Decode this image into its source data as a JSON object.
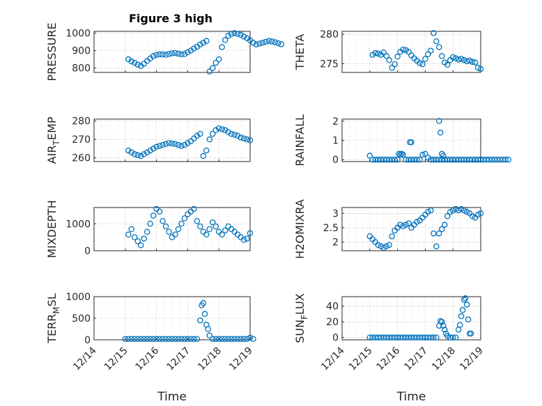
{
  "title": "Figure 3 high",
  "colors": {
    "marker": "#0072BD",
    "axis": "#262626",
    "grid": "#a0a0a0"
  },
  "x_ticks": [
    "12/14",
    "12/15",
    "12/16",
    "12/17",
    "12/18",
    "12/19"
  ],
  "x_label": "Time",
  "chart_data": [
    {
      "type": "scatter",
      "ylabel": "PRESSURE",
      "ylim": [
        775,
        1010
      ],
      "yticks": [
        800,
        900,
        1000
      ],
      "ylabel_sub": null,
      "grid": true,
      "marker": "circle",
      "x": [
        15.1,
        15.2,
        15.3,
        15.4,
        15.5,
        15.6,
        15.7,
        15.8,
        15.9,
        16.0,
        16.1,
        16.2,
        16.3,
        16.4,
        16.5,
        16.6,
        16.7,
        16.8,
        16.9,
        17.0,
        17.1,
        17.2,
        17.3,
        17.4,
        17.5,
        17.6,
        17.7,
        17.8,
        17.9,
        18.0,
        18.1,
        18.2,
        18.3,
        18.4,
        18.5,
        18.6,
        18.7,
        18.8,
        18.9,
        19.0,
        19.1,
        19.2,
        19.3,
        19.4,
        19.5,
        19.6,
        19.7,
        19.8,
        19.9,
        20.0
      ],
      "values": [
        850,
        838,
        830,
        820,
        812,
        825,
        840,
        855,
        868,
        875,
        878,
        878,
        876,
        880,
        884,
        886,
        882,
        878,
        880,
        890,
        900,
        912,
        922,
        935,
        945,
        955,
        780,
        800,
        830,
        850,
        920,
        960,
        985,
        995,
        1000,
        995,
        990,
        980,
        970,
        958,
        945,
        935,
        940,
        945,
        950,
        955,
        952,
        948,
        942,
        936
      ]
    },
    {
      "type": "scatter",
      "ylabel": "THETA",
      "ylim": [
        273.5,
        280.5
      ],
      "yticks": [
        275,
        280
      ],
      "ylabel_sub": null,
      "grid": true,
      "marker": "circle",
      "x": [
        15.1,
        15.2,
        15.3,
        15.4,
        15.5,
        15.6,
        15.7,
        15.8,
        15.9,
        16.0,
        16.1,
        16.2,
        16.3,
        16.4,
        16.5,
        16.6,
        16.7,
        16.8,
        16.9,
        17.0,
        17.1,
        17.2,
        17.3,
        17.4,
        17.5,
        17.6,
        17.7,
        17.8,
        17.9,
        18.0,
        18.1,
        18.2,
        18.3,
        18.4,
        18.5,
        18.6,
        18.7,
        18.8,
        18.9,
        19.0
      ],
      "values": [
        276.5,
        276.8,
        276.7,
        276.5,
        276.9,
        276.3,
        275.6,
        274.3,
        274.9,
        276.2,
        277.0,
        277.4,
        277.3,
        277.0,
        276.4,
        275.9,
        275.5,
        275.1,
        274.9,
        275.8,
        276.6,
        277.2,
        280.2,
        278.8,
        277.8,
        276.3,
        275.2,
        274.8,
        275.6,
        276.1,
        275.9,
        275.7,
        275.8,
        275.6,
        275.4,
        275.5,
        275.3,
        275.2,
        274.3,
        274.1
      ]
    },
    {
      "type": "scatter",
      "ylabel": "AIR",
      "ylabel_sub": "T",
      "ylabel_rest": "EMP",
      "ylim": [
        258,
        281
      ],
      "yticks": [
        260,
        270,
        280
      ],
      "grid": true,
      "marker": "circle",
      "x": [
        15.1,
        15.2,
        15.3,
        15.4,
        15.5,
        15.6,
        15.7,
        15.8,
        15.9,
        16.0,
        16.1,
        16.2,
        16.3,
        16.4,
        16.5,
        16.6,
        16.7,
        16.8,
        16.9,
        17.0,
        17.1,
        17.2,
        17.3,
        17.4,
        17.5,
        17.6,
        17.7,
        17.8,
        17.9,
        18.0,
        18.1,
        18.2,
        18.3,
        18.4,
        18.5,
        18.6,
        18.7,
        18.8,
        18.9,
        19.0
      ],
      "values": [
        264,
        263,
        262,
        261.5,
        261,
        262,
        263,
        264,
        265,
        266,
        266.5,
        267,
        267.5,
        268,
        267.8,
        267.5,
        267,
        266.5,
        267,
        268,
        269,
        270.5,
        272,
        273,
        261,
        264,
        270,
        273,
        275,
        276,
        275.5,
        275,
        274,
        273,
        272.5,
        272,
        271,
        270.5,
        270,
        269.5
      ]
    },
    {
      "type": "scatter",
      "ylabel": "RAINFALL",
      "ylim": [
        -0.1,
        2.1
      ],
      "yticks": [
        0,
        1,
        2
      ],
      "ylabel_sub": null,
      "grid": true,
      "marker": "circle",
      "x": [
        15.0,
        15.1,
        15.2,
        15.3,
        15.4,
        15.5,
        15.6,
        15.7,
        15.8,
        15.9,
        16.0,
        16.1,
        16.2,
        16.3,
        16.4,
        16.5,
        16.6,
        16.7,
        16.8,
        16.9,
        17.0,
        17.1,
        17.2,
        17.3,
        17.4,
        17.5,
        17.6,
        17.7,
        17.8,
        17.9,
        18.0,
        18.1,
        18.2,
        18.3,
        18.4,
        18.5,
        18.6,
        18.7,
        18.8,
        18.9,
        19.0,
        19.1,
        19.2,
        19.3,
        19.4,
        19.5,
        19.6,
        19.7,
        19.8,
        19.9,
        20.0,
        16.45,
        16.5,
        16.05,
        16.15,
        17.5,
        17.55,
        17.6,
        17.65
      ],
      "values": [
        0.2,
        0,
        0,
        0,
        0,
        0,
        0,
        0,
        0,
        0,
        0,
        0.25,
        0.25,
        0,
        0,
        0,
        0,
        0,
        0,
        0.25,
        0.3,
        0.1,
        0,
        0,
        0,
        0,
        0,
        0,
        0,
        0,
        0,
        0,
        0,
        0,
        0,
        0,
        0,
        0,
        0,
        0,
        0,
        0,
        0,
        0,
        0,
        0,
        0,
        0,
        0,
        0,
        0,
        0.9,
        0.9,
        0.3,
        0.3,
        2.0,
        1.4,
        0.3,
        0.2
      ]
    },
    {
      "type": "scatter",
      "ylabel": "MIXDEPTH",
      "ylim": [
        0,
        1600
      ],
      "yticks": [
        0,
        1000
      ],
      "ylabel_sub": null,
      "grid": true,
      "marker": "circle",
      "x": [
        15.1,
        15.2,
        15.3,
        15.4,
        15.5,
        15.6,
        15.7,
        15.8,
        15.9,
        16.0,
        16.1,
        16.2,
        16.3,
        16.4,
        16.5,
        16.6,
        16.7,
        16.8,
        16.9,
        17.0,
        17.1,
        17.2,
        17.3,
        17.4,
        17.5,
        17.6,
        17.7,
        17.8,
        17.9,
        18.0,
        18.1,
        18.2,
        18.3,
        18.4,
        18.5,
        18.6,
        18.7,
        18.8,
        18.9,
        19.0
      ],
      "values": [
        600,
        800,
        500,
        350,
        200,
        450,
        700,
        1000,
        1300,
        1550,
        1450,
        1100,
        900,
        700,
        500,
        600,
        800,
        1000,
        1200,
        1350,
        1450,
        1550,
        1100,
        900,
        700,
        600,
        800,
        1050,
        900,
        700,
        600,
        750,
        900,
        800,
        700,
        600,
        500,
        400,
        450,
        650
      ]
    },
    {
      "type": "scatter",
      "ylabel": "H2OMIXRA",
      "ylim": [
        1.7,
        3.2
      ],
      "yticks": [
        2,
        2.5,
        3
      ],
      "ylabel_sub": null,
      "grid": true,
      "marker": "circle",
      "x": [
        15.0,
        15.1,
        15.2,
        15.3,
        15.4,
        15.5,
        15.6,
        15.7,
        15.8,
        15.9,
        16.0,
        16.1,
        16.2,
        16.3,
        16.4,
        16.5,
        16.6,
        16.7,
        16.8,
        16.9,
        17.0,
        17.1,
        17.2,
        17.3,
        17.4,
        17.5,
        17.6,
        17.7,
        17.8,
        17.9,
        18.0,
        18.1,
        18.2,
        18.3,
        18.4,
        18.5,
        18.6,
        18.7,
        18.8,
        18.9,
        19.0
      ],
      "values": [
        2.2,
        2.1,
        2.0,
        1.9,
        1.85,
        1.8,
        1.85,
        1.9,
        2.2,
        2.4,
        2.5,
        2.6,
        2.55,
        2.6,
        2.65,
        2.5,
        2.6,
        2.7,
        2.75,
        2.85,
        2.95,
        3.05,
        3.1,
        2.3,
        1.85,
        2.3,
        2.45,
        2.6,
        2.9,
        3.05,
        3.1,
        3.15,
        3.1,
        3.15,
        3.1,
        3.05,
        3.0,
        2.9,
        2.85,
        2.95,
        3.0
      ]
    },
    {
      "type": "scatter",
      "ylabel": "TERR",
      "ylabel_sub": "M",
      "ylabel_rest": "SL",
      "ylim": [
        0,
        1000
      ],
      "yticks": [
        0,
        500,
        1000
      ],
      "grid": true,
      "marker": "circle",
      "x": [
        15.0,
        15.1,
        15.2,
        15.3,
        15.4,
        15.5,
        15.6,
        15.7,
        15.8,
        15.9,
        16.0,
        16.1,
        16.2,
        16.3,
        16.4,
        16.5,
        16.6,
        16.7,
        16.8,
        16.9,
        17.0,
        17.1,
        17.2,
        17.3,
        17.4,
        17.45,
        17.5,
        17.55,
        17.6,
        17.65,
        17.7,
        17.8,
        17.9,
        18.0,
        18.1,
        18.2,
        18.3,
        18.4,
        18.5,
        18.6,
        18.7,
        18.8,
        18.9,
        19.0,
        19.1
      ],
      "values": [
        20,
        20,
        20,
        20,
        20,
        20,
        20,
        20,
        20,
        20,
        20,
        20,
        20,
        20,
        20,
        20,
        20,
        20,
        20,
        20,
        20,
        20,
        20,
        20,
        450,
        800,
        850,
        600,
        350,
        250,
        100,
        20,
        20,
        20,
        20,
        20,
        20,
        20,
        20,
        20,
        20,
        20,
        20,
        50,
        20
      ]
    },
    {
      "type": "scatter",
      "ylabel": "SUN",
      "ylabel_sub": "F",
      "ylabel_rest": "LUX",
      "ylim": [
        -3,
        52
      ],
      "yticks": [
        0,
        20,
        40
      ],
      "grid": true,
      "marker": "circle",
      "x": [
        15.0,
        15.1,
        15.2,
        15.3,
        15.4,
        15.5,
        15.6,
        15.7,
        15.8,
        15.9,
        16.0,
        16.1,
        16.2,
        16.3,
        16.4,
        16.5,
        16.6,
        16.7,
        16.8,
        16.9,
        17.0,
        17.1,
        17.2,
        17.3,
        17.4,
        17.5,
        17.55,
        17.6,
        17.65,
        17.7,
        17.75,
        17.8,
        17.9,
        18.0,
        18.1,
        18.2,
        18.25,
        18.3,
        18.35,
        18.4,
        18.45,
        18.5,
        18.55,
        18.6,
        18.65
      ],
      "values": [
        0,
        0,
        0,
        0,
        0,
        0,
        0,
        0,
        0,
        0,
        0,
        0,
        0,
        0,
        0,
        0,
        0,
        0,
        0,
        0,
        0,
        0,
        0,
        0,
        0,
        15,
        21,
        20,
        15,
        10,
        5,
        2,
        0,
        0,
        0,
        10,
        16,
        27,
        35,
        48,
        50,
        42,
        23,
        5,
        5
      ]
    }
  ]
}
